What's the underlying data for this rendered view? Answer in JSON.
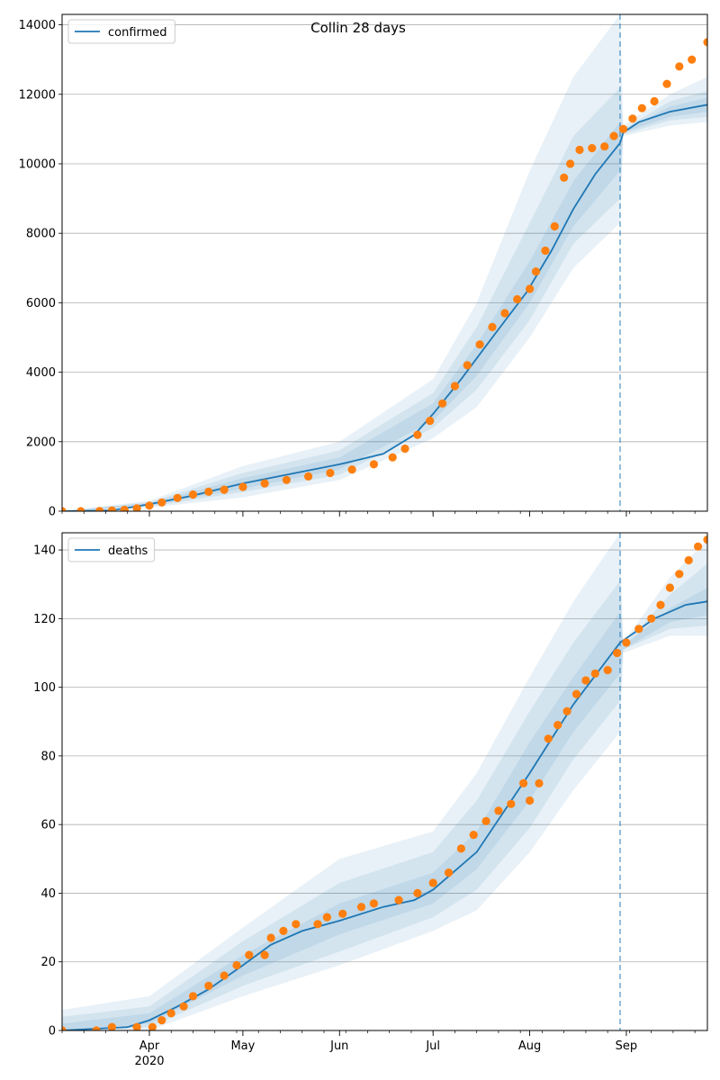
{
  "title": "Collin 28 days",
  "colors": {
    "model": "#1f77b4",
    "observed": "#ff7f0e",
    "band": "#1f77b4",
    "grid": "#b0b0b0",
    "forecast_line": "#1f77b4"
  },
  "x_axis": {
    "start_date": "2020-03-04",
    "end_date": "2020-09-27",
    "forecast_date": "2020-08-30",
    "month_ticks": [
      {
        "date": "2020-04-01",
        "label": "Apr",
        "sublabel": "2020"
      },
      {
        "date": "2020-05-01",
        "label": "May",
        "sublabel": ""
      },
      {
        "date": "2020-06-01",
        "label": "Jun",
        "sublabel": ""
      },
      {
        "date": "2020-07-01",
        "label": "Jul",
        "sublabel": ""
      },
      {
        "date": "2020-08-01",
        "label": "Aug",
        "sublabel": ""
      },
      {
        "date": "2020-09-01",
        "label": "Sep",
        "sublabel": ""
      }
    ]
  },
  "chart_data": [
    {
      "type": "line",
      "legend": "confirmed",
      "legend_position": "top-left",
      "grid": "horizontal",
      "ylim": [
        0,
        14300
      ],
      "yticks": [
        0,
        2000,
        4000,
        6000,
        8000,
        10000,
        12000,
        14000
      ],
      "model_curve": [
        [
          "2020-03-04",
          0
        ],
        [
          "2020-03-20",
          20
        ],
        [
          "2020-04-01",
          200
        ],
        [
          "2020-04-15",
          450
        ],
        [
          "2020-05-01",
          800
        ],
        [
          "2020-05-15",
          1050
        ],
        [
          "2020-06-01",
          1350
        ],
        [
          "2020-06-15",
          1650
        ],
        [
          "2020-06-25",
          2200
        ],
        [
          "2020-07-01",
          2800
        ],
        [
          "2020-07-10",
          3800
        ],
        [
          "2020-07-20",
          5000
        ],
        [
          "2020-07-31",
          6300
        ],
        [
          "2020-08-08",
          7500
        ],
        [
          "2020-08-15",
          8700
        ],
        [
          "2020-08-22",
          9700
        ],
        [
          "2020-08-30",
          10600
        ],
        [
          "2020-08-31",
          10900
        ],
        [
          "2020-09-05",
          11200
        ],
        [
          "2020-09-15",
          11500
        ],
        [
          "2020-09-27",
          11700
        ]
      ],
      "bands": [
        {
          "level": "outer",
          "points": [
            [
              "2020-03-04",
              0,
              0
            ],
            [
              "2020-04-01",
              100,
              300
            ],
            [
              "2020-05-01",
              400,
              1300
            ],
            [
              "2020-06-01",
              900,
              2000
            ],
            [
              "2020-07-01",
              2100,
              3800
            ],
            [
              "2020-07-15",
              3000,
              6000
            ],
            [
              "2020-08-01",
              5000,
              9800
            ],
            [
              "2020-08-15",
              7000,
              12500
            ],
            [
              "2020-08-30",
              8300,
              14300
            ],
            [
              "2020-08-31",
              10800,
              11100
            ],
            [
              "2020-09-15",
              11100,
              12000
            ],
            [
              "2020-09-27",
              11200,
              12500
            ]
          ]
        },
        {
          "level": "mid",
          "points": [
            [
              "2020-03-04",
              0,
              0
            ],
            [
              "2020-04-01",
              130,
              260
            ],
            [
              "2020-05-01",
              550,
              1100
            ],
            [
              "2020-06-01",
              1050,
              1750
            ],
            [
              "2020-07-01",
              2400,
              3400
            ],
            [
              "2020-07-15",
              3500,
              5300
            ],
            [
              "2020-08-01",
              5500,
              8300
            ],
            [
              "2020-08-15",
              7700,
              10800
            ],
            [
              "2020-08-30",
              9000,
              12200
            ],
            [
              "2020-08-31",
              10850,
              11000
            ],
            [
              "2020-09-15",
              11250,
              11800
            ],
            [
              "2020-09-27",
              11350,
              12100
            ]
          ]
        },
        {
          "level": "inner",
          "points": [
            [
              "2020-03-04",
              0,
              0
            ],
            [
              "2020-04-01",
              160,
              230
            ],
            [
              "2020-05-01",
              650,
              950
            ],
            [
              "2020-06-01",
              1200,
              1550
            ],
            [
              "2020-07-01",
              2600,
              3100
            ],
            [
              "2020-07-15",
              3900,
              4800
            ],
            [
              "2020-08-01",
              6000,
              7200
            ],
            [
              "2020-08-15",
              8200,
              9500
            ],
            [
              "2020-08-30",
              9800,
              11200
            ],
            [
              "2020-08-31",
              10900,
              10950
            ],
            [
              "2020-09-15",
              11350,
              11650
            ],
            [
              "2020-09-27",
              11500,
              11900
            ]
          ]
        }
      ],
      "observed": [
        [
          "2020-03-04",
          0
        ],
        [
          "2020-03-10",
          0
        ],
        [
          "2020-03-16",
          5
        ],
        [
          "2020-03-20",
          20
        ],
        [
          "2020-03-24",
          40
        ],
        [
          "2020-03-28",
          80
        ],
        [
          "2020-04-01",
          160
        ],
        [
          "2020-04-05",
          250
        ],
        [
          "2020-04-10",
          380
        ],
        [
          "2020-04-15",
          480
        ],
        [
          "2020-04-20",
          560
        ],
        [
          "2020-04-25",
          620
        ],
        [
          "2020-05-01",
          700
        ],
        [
          "2020-05-08",
          800
        ],
        [
          "2020-05-15",
          900
        ],
        [
          "2020-05-22",
          1000
        ],
        [
          "2020-05-29",
          1100
        ],
        [
          "2020-06-05",
          1200
        ],
        [
          "2020-06-12",
          1350
        ],
        [
          "2020-06-18",
          1550
        ],
        [
          "2020-06-22",
          1800
        ],
        [
          "2020-06-26",
          2200
        ],
        [
          "2020-06-30",
          2600
        ],
        [
          "2020-07-04",
          3100
        ],
        [
          "2020-07-08",
          3600
        ],
        [
          "2020-07-12",
          4200
        ],
        [
          "2020-07-16",
          4800
        ],
        [
          "2020-07-20",
          5300
        ],
        [
          "2020-07-24",
          5700
        ],
        [
          "2020-07-28",
          6100
        ],
        [
          "2020-08-01",
          6400
        ],
        [
          "2020-08-03",
          6900
        ],
        [
          "2020-08-06",
          7500
        ],
        [
          "2020-08-09",
          8200
        ],
        [
          "2020-08-12",
          9600
        ],
        [
          "2020-08-14",
          10000
        ],
        [
          "2020-08-17",
          10400
        ],
        [
          "2020-08-21",
          10450
        ],
        [
          "2020-08-25",
          10500
        ],
        [
          "2020-08-28",
          10800
        ],
        [
          "2020-08-31",
          11000
        ],
        [
          "2020-09-03",
          11300
        ],
        [
          "2020-09-06",
          11600
        ],
        [
          "2020-09-10",
          11800
        ],
        [
          "2020-09-14",
          12300
        ],
        [
          "2020-09-18",
          12800
        ],
        [
          "2020-09-22",
          13000
        ],
        [
          "2020-09-27",
          13500
        ]
      ]
    },
    {
      "type": "line",
      "legend": "deaths",
      "legend_position": "top-left",
      "grid": "horizontal",
      "ylim": [
        0,
        145
      ],
      "yticks": [
        0,
        20,
        40,
        60,
        80,
        100,
        120,
        140
      ],
      "model_curve": [
        [
          "2020-03-04",
          0
        ],
        [
          "2020-03-25",
          1
        ],
        [
          "2020-04-01",
          3
        ],
        [
          "2020-04-10",
          7
        ],
        [
          "2020-04-20",
          12
        ],
        [
          "2020-05-01",
          19
        ],
        [
          "2020-05-10",
          25
        ],
        [
          "2020-05-20",
          29
        ],
        [
          "2020-06-01",
          32
        ],
        [
          "2020-06-15",
          36
        ],
        [
          "2020-06-25",
          38
        ],
        [
          "2020-07-01",
          41
        ],
        [
          "2020-07-15",
          52
        ],
        [
          "2020-08-01",
          75
        ],
        [
          "2020-08-15",
          95
        ],
        [
          "2020-08-30",
          113
        ],
        [
          "2020-09-10",
          120
        ],
        [
          "2020-09-20",
          124
        ],
        [
          "2020-09-27",
          125
        ]
      ],
      "bands": [
        {
          "level": "outer",
          "points": [
            [
              "2020-03-04",
              0,
              6
            ],
            [
              "2020-04-01",
              0,
              10
            ],
            [
              "2020-05-01",
              10,
              30
            ],
            [
              "2020-06-01",
              19,
              50
            ],
            [
              "2020-07-01",
              29,
              58
            ],
            [
              "2020-07-15",
              35,
              75
            ],
            [
              "2020-08-01",
              52,
              103
            ],
            [
              "2020-08-15",
              70,
              125
            ],
            [
              "2020-08-30",
              87,
              145
            ],
            [
              "2020-08-31",
              110,
              113
            ],
            [
              "2020-09-15",
              115,
              132
            ],
            [
              "2020-09-27",
              115,
              143
            ]
          ]
        },
        {
          "level": "mid",
          "points": [
            [
              "2020-03-04",
              0,
              4
            ],
            [
              "2020-04-01",
              1,
              7
            ],
            [
              "2020-05-01",
              13,
              26
            ],
            [
              "2020-06-01",
              23,
              43
            ],
            [
              "2020-07-01",
              33,
              52
            ],
            [
              "2020-07-15",
              41,
              67
            ],
            [
              "2020-08-01",
              59,
              93
            ],
            [
              "2020-08-15",
              79,
              113
            ],
            [
              "2020-08-30",
              96,
              131
            ],
            [
              "2020-08-31",
              111,
              112
            ],
            [
              "2020-09-15",
              117,
              127
            ],
            [
              "2020-09-27",
              118,
              136
            ]
          ]
        },
        {
          "level": "inner",
          "points": [
            [
              "2020-03-04",
              0,
              2
            ],
            [
              "2020-04-01",
              2,
              5
            ],
            [
              "2020-05-01",
              16,
              22
            ],
            [
              "2020-06-01",
              28,
              37
            ],
            [
              "2020-07-01",
              37,
              46
            ],
            [
              "2020-07-15",
              47,
              58
            ],
            [
              "2020-08-01",
              67,
              84
            ],
            [
              "2020-08-15",
              87,
              103
            ],
            [
              "2020-08-30",
              104,
              122
            ],
            [
              "2020-08-31",
              111,
              112
            ],
            [
              "2020-09-15",
              119,
              123
            ],
            [
              "2020-09-27",
              121,
              129
            ]
          ]
        }
      ],
      "observed": [
        [
          "2020-03-04",
          0
        ],
        [
          "2020-03-15",
          0
        ],
        [
          "2020-03-20",
          1
        ],
        [
          "2020-03-28",
          1
        ],
        [
          "2020-04-02",
          1
        ],
        [
          "2020-04-05",
          3
        ],
        [
          "2020-04-08",
          5
        ],
        [
          "2020-04-12",
          7
        ],
        [
          "2020-04-15",
          10
        ],
        [
          "2020-04-20",
          13
        ],
        [
          "2020-04-25",
          16
        ],
        [
          "2020-04-29",
          19
        ],
        [
          "2020-05-03",
          22
        ],
        [
          "2020-05-08",
          22
        ],
        [
          "2020-05-10",
          27
        ],
        [
          "2020-05-14",
          29
        ],
        [
          "2020-05-18",
          31
        ],
        [
          "2020-05-25",
          31
        ],
        [
          "2020-05-28",
          33
        ],
        [
          "2020-06-02",
          34
        ],
        [
          "2020-06-08",
          36
        ],
        [
          "2020-06-12",
          37
        ],
        [
          "2020-06-20",
          38
        ],
        [
          "2020-06-26",
          40
        ],
        [
          "2020-07-01",
          43
        ],
        [
          "2020-07-06",
          46
        ],
        [
          "2020-07-10",
          53
        ],
        [
          "2020-07-14",
          57
        ],
        [
          "2020-07-18",
          61
        ],
        [
          "2020-07-22",
          64
        ],
        [
          "2020-07-26",
          66
        ],
        [
          "2020-07-30",
          72
        ],
        [
          "2020-08-01",
          67
        ],
        [
          "2020-08-04",
          72
        ],
        [
          "2020-08-07",
          85
        ],
        [
          "2020-08-10",
          89
        ],
        [
          "2020-08-13",
          93
        ],
        [
          "2020-08-16",
          98
        ],
        [
          "2020-08-19",
          102
        ],
        [
          "2020-08-22",
          104
        ],
        [
          "2020-08-26",
          105
        ],
        [
          "2020-08-29",
          110
        ],
        [
          "2020-09-01",
          113
        ],
        [
          "2020-09-05",
          117
        ],
        [
          "2020-09-09",
          120
        ],
        [
          "2020-09-12",
          124
        ],
        [
          "2020-09-15",
          129
        ],
        [
          "2020-09-18",
          133
        ],
        [
          "2020-09-21",
          137
        ],
        [
          "2020-09-24",
          141
        ],
        [
          "2020-09-27",
          143
        ]
      ]
    }
  ]
}
